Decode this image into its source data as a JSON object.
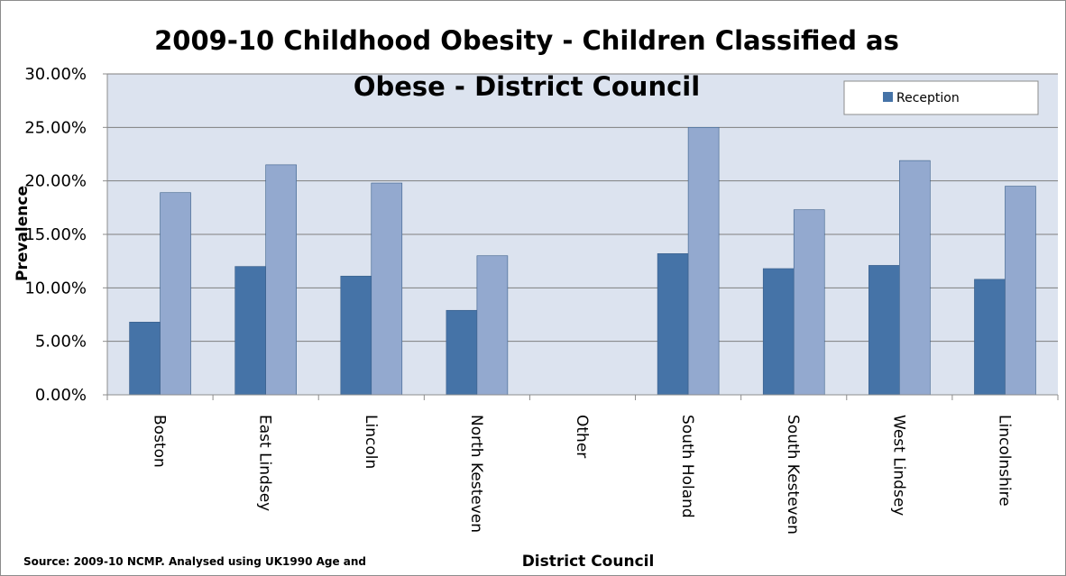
{
  "chart_data": {
    "type": "bar",
    "title_lines": [
      "2009-10 Childhood Obesity - Children Classified as",
      "Obese - District Council"
    ],
    "xlabel": "District Council",
    "ylabel": "Prevalence",
    "ylim": [
      0,
      0.3
    ],
    "yticks": [
      "0.00%",
      "5.00%",
      "10.00%",
      "15.00%",
      "20.00%",
      "25.00%",
      "30.00%"
    ],
    "grid": true,
    "legend_position": "top-right",
    "categories": [
      "Boston",
      "East Lindsey",
      "Lincoln",
      "North Kesteven",
      "Other",
      "South Holand",
      "South Kesteven",
      "West Lindsey",
      "Lincolnshire"
    ],
    "series": [
      {
        "name": "Reception",
        "color": "#4573a7",
        "values": [
          0.068,
          0.12,
          0.111,
          0.079,
          null,
          0.132,
          0.118,
          0.121,
          0.108
        ]
      },
      {
        "color": "#93a9cf",
        "values": [
          0.189,
          0.215,
          0.198,
          0.13,
          null,
          0.25,
          0.173,
          0.219,
          0.195
        ]
      }
    ]
  },
  "source_note": "Source: 2009-10 NCMP. Analysed using UK1990 Age and",
  "colors": {
    "plot_background": "#dce3ef",
    "gridline": "#7f7f7f",
    "axis": "#8c8c8c"
  }
}
